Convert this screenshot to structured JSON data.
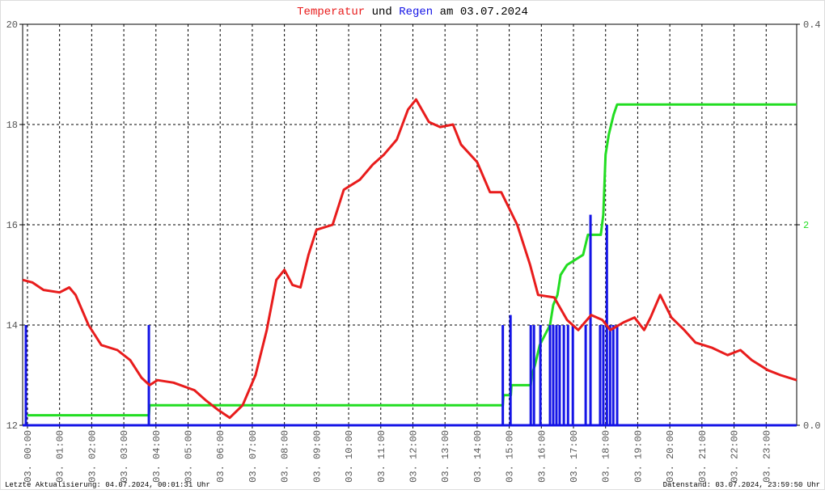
{
  "chart_data": {
    "type": "line",
    "title_words": [
      "und",
      "am 03.07.2024"
    ],
    "xlim": [
      -0.15,
      23.95
    ],
    "xticks": [
      {
        "value": 0,
        "label": "03. 00:00"
      },
      {
        "value": 1,
        "label": "03. 01:00"
      },
      {
        "value": 2,
        "label": "03. 02:00"
      },
      {
        "value": 3,
        "label": "03. 03:00"
      },
      {
        "value": 4,
        "label": "03. 04:00"
      },
      {
        "value": 5,
        "label": "03. 05:00"
      },
      {
        "value": 6,
        "label": "03. 06:00"
      },
      {
        "value": 7,
        "label": "03. 07:00"
      },
      {
        "value": 8,
        "label": "03. 08:00"
      },
      {
        "value": 9,
        "label": "03. 09:00"
      },
      {
        "value": 10,
        "label": "03. 10:00"
      },
      {
        "value": 11,
        "label": "03. 11:00"
      },
      {
        "value": 12,
        "label": "03. 12:00"
      },
      {
        "value": 13,
        "label": "03. 13:00"
      },
      {
        "value": 14,
        "label": "03. 14:00"
      },
      {
        "value": 15,
        "label": "03. 15:00"
      },
      {
        "value": 16,
        "label": "03. 16:00"
      },
      {
        "value": 17,
        "label": "03. 17:00"
      },
      {
        "value": 18,
        "label": "03. 18:00"
      },
      {
        "value": 19,
        "label": "03. 19:00"
      },
      {
        "value": 20,
        "label": "03. 20:00"
      },
      {
        "value": 21,
        "label": "03. 21:00"
      },
      {
        "value": 22,
        "label": "03. 22:00"
      },
      {
        "value": 23,
        "label": "03. 23:00"
      }
    ],
    "ylim": [
      12,
      20
    ],
    "yticks": [
      12,
      14,
      16,
      18,
      20
    ],
    "y2lim": [
      0,
      0.4
    ],
    "y2ticks": [
      {
        "value": 0,
        "label": "0.0"
      },
      {
        "value": 0.4,
        "label": "0.4"
      }
    ],
    "y3lim": [
      0,
      4
    ],
    "y3ticks": [
      2
    ],
    "y3color": "#22dd22",
    "grid": true,
    "series": [
      {
        "name": "Temperatur",
        "color": "#e81c1c",
        "kind": "line",
        "x": [
          -0.15,
          0.15,
          0.5,
          1.0,
          1.3,
          1.5,
          1.9,
          2.3,
          2.8,
          3.2,
          3.55,
          3.8,
          4.05,
          4.55,
          5.2,
          5.55,
          5.95,
          6.3,
          6.7,
          7.1,
          7.45,
          7.75,
          8.0,
          8.25,
          8.5,
          8.75,
          9.0,
          9.5,
          9.85,
          10.35,
          10.75,
          11.1,
          11.5,
          11.85,
          12.1,
          12.5,
          12.85,
          13.25,
          13.5,
          14.0,
          14.4,
          14.75,
          15.25,
          15.65,
          15.9,
          16.4,
          16.8,
          17.15,
          17.55,
          17.9,
          18.15,
          18.55,
          18.9,
          19.2,
          19.4,
          19.7,
          20.05,
          20.45,
          20.8,
          21.3,
          21.8,
          22.2,
          22.55,
          23.05,
          23.45,
          23.95
        ],
        "values": [
          14.9,
          14.85,
          14.7,
          14.65,
          14.75,
          14.6,
          14.0,
          13.6,
          13.5,
          13.3,
          12.95,
          12.8,
          12.9,
          12.85,
          12.7,
          12.5,
          12.3,
          12.15,
          12.4,
          13.0,
          13.9,
          14.9,
          15.1,
          14.8,
          14.75,
          15.4,
          15.9,
          16.0,
          16.7,
          16.9,
          17.2,
          17.4,
          17.7,
          18.3,
          18.5,
          18.05,
          17.95,
          18.0,
          17.6,
          17.25,
          16.65,
          16.65,
          16.0,
          15.2,
          14.6,
          14.55,
          14.1,
          13.9,
          14.2,
          14.1,
          13.9,
          14.05,
          14.15,
          13.9,
          14.15,
          14.6,
          14.15,
          13.9,
          13.65,
          13.55,
          13.4,
          13.5,
          13.3,
          13.1,
          13.0,
          12.9
        ]
      },
      {
        "name": "Regen",
        "color": "#1414e6",
        "kind": "bar",
        "axis": "y2",
        "x": [
          -0.05,
          3.78,
          14.8,
          15.04,
          15.67,
          15.77,
          15.97,
          16.27,
          16.37,
          16.47,
          16.57,
          16.7,
          16.83,
          16.98,
          17.38,
          17.53,
          17.83,
          17.93,
          18.04,
          18.14,
          18.24,
          18.36
        ],
        "values": [
          0.1,
          0.1,
          0.1,
          0.11,
          0.1,
          0.1,
          0.1,
          0.1,
          0.1,
          0.1,
          0.1,
          0.1,
          0.1,
          0.1,
          0.1,
          0.21,
          0.1,
          0.1,
          0.2,
          0.1,
          0.1,
          0.1
        ]
      },
      {
        "color": "#22dd22",
        "kind": "line",
        "axis": "y3",
        "x": [
          0,
          3.78,
          3.8,
          14.8,
          14.82,
          15.05,
          15.07,
          15.67,
          15.7,
          15.8,
          15.95,
          16.27,
          16.37,
          16.5,
          16.6,
          16.8,
          17.3,
          17.45,
          17.85,
          17.93,
          18.0,
          18.1,
          18.25,
          18.36,
          23.95
        ],
        "values": [
          0.1,
          0.1,
          0.2,
          0.2,
          0.3,
          0.3,
          0.4,
          0.4,
          0.5,
          0.6,
          0.8,
          1.0,
          1.2,
          1.3,
          1.5,
          1.6,
          1.7,
          1.9,
          1.9,
          2.1,
          2.7,
          2.9,
          3.1,
          3.2,
          3.2
        ]
      }
    ],
    "footer_left": "Letzte Aktualisierung: 04.07.2024, 00:01:31 Uhr",
    "footer_right": "Datenstand: 03.07.2024, 23:59:50 Uhr"
  }
}
